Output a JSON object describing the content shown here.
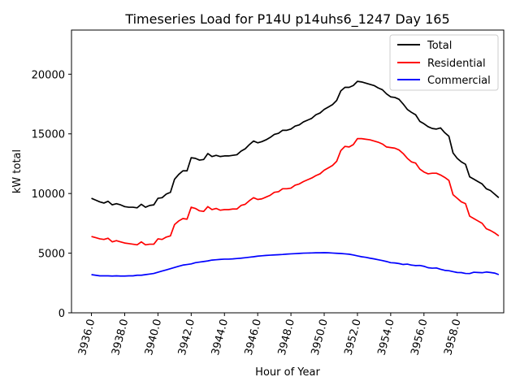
{
  "chart_data": {
    "type": "line",
    "title": "Timeseries Load for P14U p14uhs6_1247  Day 165",
    "xlabel": "Hour of Year",
    "ylabel": "kW total",
    "xlim": [
      3934.8,
      3960.8
    ],
    "ylim": [
      0,
      23700
    ],
    "xticks": [
      3936,
      3938,
      3940,
      3942,
      3944,
      3946,
      3948,
      3950,
      3952,
      3954,
      3956,
      3958
    ],
    "xtick_labels": [
      "3936.0",
      "3938.0",
      "3940.0",
      "3942.0",
      "3944.0",
      "3946.0",
      "3948.0",
      "3950.0",
      "3952.0",
      "3954.0",
      "3956.0",
      "3958.0"
    ],
    "yticks": [
      0,
      5000,
      10000,
      15000,
      20000
    ],
    "ytick_labels": [
      "0",
      "5000",
      "10000",
      "15000",
      "20000"
    ],
    "legend_position": "top-right",
    "x_start": 3936.0,
    "x_step": 0.25,
    "series": [
      {
        "name": "Total",
        "color": "#000000",
        "values": [
          9600,
          9450,
          9300,
          9200,
          9350,
          9050,
          9150,
          9050,
          8900,
          8850,
          8850,
          8800,
          9100,
          8850,
          9000,
          9050,
          9600,
          9650,
          9950,
          10100,
          11200,
          11600,
          11900,
          11900,
          13000,
          12950,
          12800,
          12850,
          13350,
          13100,
          13200,
          13100,
          13150,
          13150,
          13200,
          13250,
          13550,
          13750,
          14100,
          14400,
          14250,
          14350,
          14500,
          14700,
          14950,
          15050,
          15300,
          15300,
          15400,
          15650,
          15750,
          16000,
          16150,
          16300,
          16600,
          16750,
          17050,
          17250,
          17450,
          17800,
          18600,
          18900,
          18900,
          19050,
          19400,
          19350,
          19250,
          19150,
          19050,
          18850,
          18700,
          18350,
          18100,
          18050,
          17900,
          17500,
          17050,
          16800,
          16600,
          16050,
          15850,
          15600,
          15450,
          15400,
          15500,
          15100,
          14800,
          13400,
          12950,
          12650,
          12450,
          11400,
          11200,
          11000,
          10800,
          10400,
          10250,
          9950,
          9650
        ],
        "color_name": "black"
      },
      {
        "name": "Residential",
        "color": "#ff0000",
        "values": [
          6400,
          6300,
          6200,
          6150,
          6250,
          5950,
          6050,
          5950,
          5850,
          5800,
          5750,
          5700,
          5950,
          5700,
          5750,
          5750,
          6200,
          6150,
          6350,
          6450,
          7400,
          7700,
          7900,
          7850,
          8850,
          8750,
          8550,
          8500,
          8900,
          8650,
          8750,
          8600,
          8650,
          8650,
          8700,
          8700,
          9000,
          9100,
          9400,
          9650,
          9500,
          9550,
          9700,
          9850,
          10100,
          10150,
          10400,
          10400,
          10450,
          10700,
          10800,
          11000,
          11150,
          11300,
          11500,
          11650,
          11950,
          12150,
          12350,
          12700,
          13600,
          13950,
          13900,
          14100,
          14600,
          14600,
          14550,
          14500,
          14400,
          14300,
          14150,
          13900,
          13850,
          13800,
          13650,
          13350,
          12950,
          12650,
          12550,
          12050,
          11800,
          11650,
          11700,
          11700,
          11550,
          11350,
          11100,
          9900,
          9600,
          9300,
          9150,
          8100,
          7900,
          7700,
          7500,
          7050,
          6900,
          6700,
          6450
        ]
      },
      {
        "name": "Commercial",
        "color": "#0000ff",
        "values": [
          3200,
          3150,
          3100,
          3100,
          3100,
          3080,
          3100,
          3080,
          3080,
          3100,
          3100,
          3150,
          3150,
          3200,
          3250,
          3300,
          3400,
          3500,
          3600,
          3700,
          3800,
          3900,
          4000,
          4050,
          4100,
          4200,
          4250,
          4300,
          4350,
          4420,
          4450,
          4480,
          4500,
          4500,
          4520,
          4550,
          4580,
          4620,
          4660,
          4700,
          4750,
          4780,
          4810,
          4830,
          4850,
          4870,
          4890,
          4920,
          4940,
          4960,
          4980,
          5000,
          5010,
          5020,
          5030,
          5030,
          5040,
          5030,
          5010,
          4990,
          4970,
          4940,
          4910,
          4850,
          4770,
          4700,
          4650,
          4580,
          4520,
          4450,
          4380,
          4300,
          4200,
          4180,
          4130,
          4050,
          4080,
          4000,
          3960,
          3970,
          3900,
          3780,
          3740,
          3760,
          3650,
          3560,
          3530,
          3450,
          3380,
          3370,
          3300,
          3290,
          3400,
          3380,
          3360,
          3420,
          3380,
          3330,
          3200
        ]
      }
    ]
  }
}
